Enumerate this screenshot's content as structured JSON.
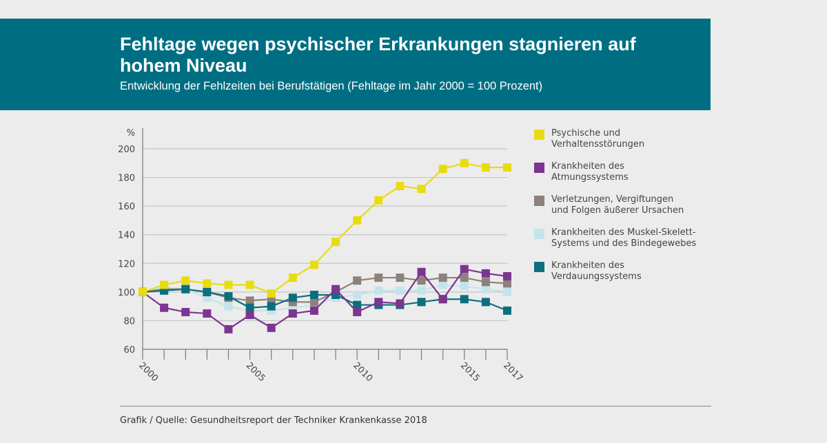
{
  "header": {
    "title": "Fehltage wegen psychischer Erkrankungen stagnieren auf hohem Niveau",
    "subtitle": "Entwicklung der Fehlzeiten bei Berufstätigen (Fehltage im Jahr 2000 = 100 Prozent)",
    "background_color": "#006e82"
  },
  "chart_data": {
    "type": "line",
    "title": "Fehltage wegen psychischer Erkrankungen stagnieren auf hohem Niveau",
    "subtitle": "Entwicklung der Fehlzeiten bei Berufstätigen (Fehltage im Jahr 2000 = 100 Prozent)",
    "ylabel": "%",
    "xlabel": "",
    "x": [
      2000,
      2001,
      2002,
      2003,
      2004,
      2005,
      2006,
      2007,
      2008,
      2009,
      2010,
      2011,
      2012,
      2013,
      2014,
      2015,
      2016,
      2017
    ],
    "x_tick_labels": [
      "2000",
      "2005",
      "2010",
      "2015",
      "2017"
    ],
    "x_tick_label_years": [
      2000,
      2005,
      2010,
      2015,
      2017
    ],
    "y_ticks": [
      60,
      80,
      100,
      120,
      140,
      160,
      180,
      200
    ],
    "ylim": [
      60,
      200
    ],
    "xlim": [
      2000,
      2017
    ],
    "grid": "horizontal",
    "legend_position": "right",
    "marker": "square",
    "series": [
      {
        "name": "Krankheiten des Muskel-Skelett-\nSystems und des Bindegewebes",
        "color": "#c3e4eb",
        "values": [
          100,
          103,
          102,
          96,
          90,
          87,
          87,
          89,
          91,
          96,
          98,
          101,
          101,
          101,
          105,
          104,
          102,
          100
        ]
      },
      {
        "name": "Verletzungen, Vergiftungen\nund Folgen äußerer Ursachen",
        "color": "#8e817a",
        "values": [
          100,
          102,
          102,
          100,
          96,
          94,
          95,
          93,
          93,
          100,
          108,
          110,
          110,
          108,
          110,
          110,
          107,
          106
        ]
      },
      {
        "name": "Krankheiten des\nVerdauungssystems",
        "color": "#0d6e80",
        "values": [
          100,
          101,
          102,
          100,
          97,
          89,
          90,
          96,
          98,
          98,
          91,
          91,
          91,
          93,
          95,
          95,
          93,
          87
        ]
      },
      {
        "name": "Krankheiten des\nAtmungssystems",
        "color": "#7c3590",
        "values": [
          100,
          89,
          86,
          85,
          74,
          84,
          75,
          85,
          87,
          102,
          86,
          93,
          92,
          114,
          95,
          116,
          113,
          111
        ]
      },
      {
        "name": "Psychische und\nVerhaltensstörungen",
        "color": "#e8dc10",
        "values": [
          100,
          105,
          108,
          106,
          105,
          105,
          99,
          110,
          119,
          135,
          150,
          164,
          174,
          172,
          186,
          190,
          187,
          187
        ]
      }
    ],
    "legend_order": [
      4,
      3,
      1,
      0,
      2
    ]
  },
  "footer": {
    "source": "Grafik / Quelle: Gesundheitsreport der Techniker Krankenkasse 2018"
  }
}
